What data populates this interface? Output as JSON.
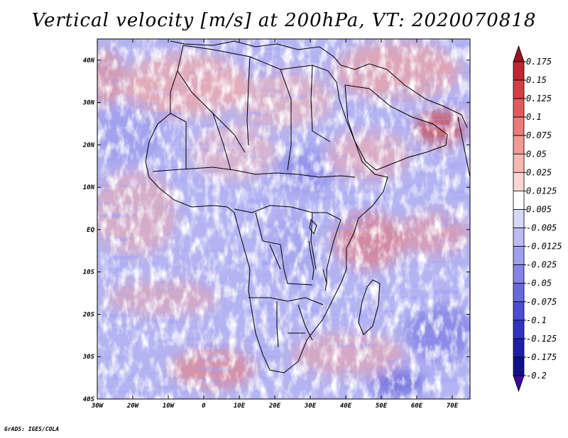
{
  "title": "Vertical velocity [m/s] at 200hPa, VT: 2020070818",
  "footer": "GrADS: IGES/COLA",
  "chart_data": {
    "type": "heatmap",
    "title": "Vertical velocity [m/s] at 200hPa, VT: 2020070818",
    "variable": "Vertical velocity",
    "units": "m/s",
    "level": "200hPa",
    "valid_time": "2020070818",
    "lon_range": [
      -30,
      75
    ],
    "lat_range": [
      -40,
      45
    ],
    "x_ticks": [
      {
        "value": -30,
        "label": "30W"
      },
      {
        "value": -20,
        "label": "20W"
      },
      {
        "value": -10,
        "label": "10W"
      },
      {
        "value": 0,
        "label": "0"
      },
      {
        "value": 10,
        "label": "10E"
      },
      {
        "value": 20,
        "label": "20E"
      },
      {
        "value": 30,
        "label": "30E"
      },
      {
        "value": 40,
        "label": "40E"
      },
      {
        "value": 50,
        "label": "50E"
      },
      {
        "value": 60,
        "label": "60E"
      },
      {
        "value": 70,
        "label": "70E"
      }
    ],
    "y_ticks": [
      {
        "value": 40,
        "label": "40N"
      },
      {
        "value": 30,
        "label": "30N"
      },
      {
        "value": 20,
        "label": "20N"
      },
      {
        "value": 10,
        "label": "10N"
      },
      {
        "value": 0,
        "label": "EQ"
      },
      {
        "value": -10,
        "label": "10S"
      },
      {
        "value": -20,
        "label": "20S"
      },
      {
        "value": -30,
        "label": "30S"
      },
      {
        "value": -40,
        "label": "40S"
      }
    ],
    "colorbar": {
      "levels": [
        "0.175",
        "0.15",
        "0.125",
        "0.1",
        "0.075",
        "0.05",
        "0.025",
        "0.0125",
        "0.005",
        "-0.005",
        "-0.0125",
        "-0.025",
        "-0.05",
        "-0.075",
        "-0.1",
        "-0.125",
        "-0.175",
        "-0.2"
      ],
      "colors": [
        "#a01020",
        "#c02630",
        "#d53e42",
        "#e25a5a",
        "#ec7a78",
        "#f29a96",
        "#f6b8b4",
        "#fad6d3",
        "#ffffff",
        "#d8d8fa",
        "#bcbcf4",
        "#a0a0ee",
        "#8484e8",
        "#6868e0",
        "#4c4cd6",
        "#3232c4",
        "#1e1eaa",
        "#10108c",
        "#3a0a9a"
      ]
    }
  }
}
